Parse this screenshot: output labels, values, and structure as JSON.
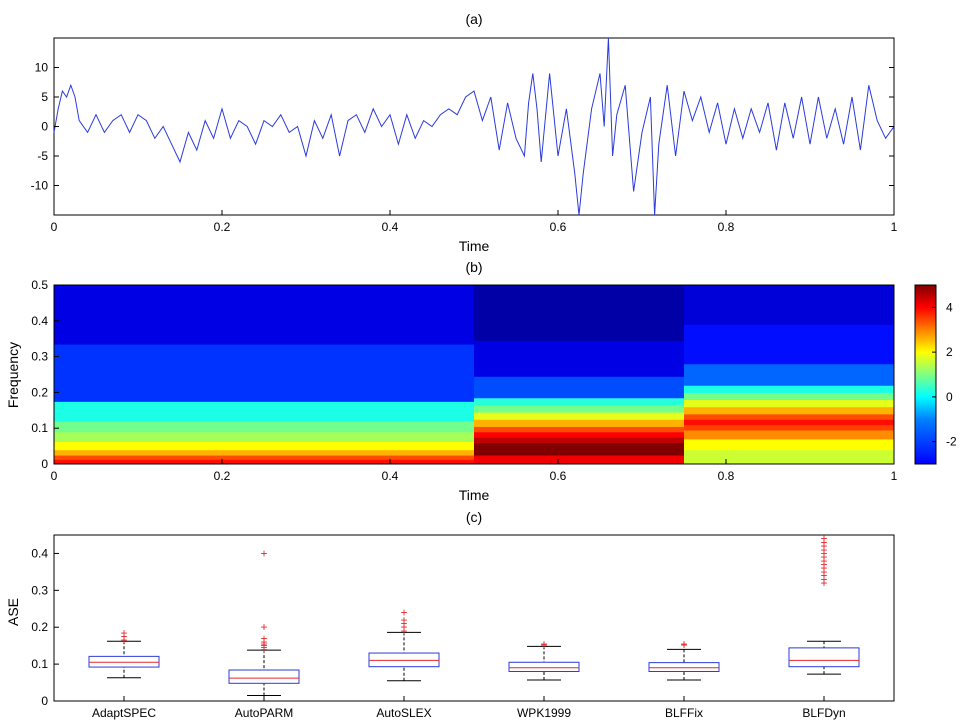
{
  "chart_data": [
    {
      "type": "line",
      "title": "(a)",
      "xlabel": "Time",
      "ylabel": "",
      "xlim": [
        0,
        1
      ],
      "ylim": [
        -15,
        15
      ],
      "xticks": [
        "0",
        "0.2",
        "0.4",
        "0.6",
        "0.8",
        "1"
      ],
      "yticks": [
        "10",
        "5",
        "0",
        "-5",
        "-10"
      ],
      "series": [
        {
          "name": "signal",
          "color": "#2b3bdb",
          "x": [
            0,
            0.005,
            0.01,
            0.015,
            0.02,
            0.025,
            0.03,
            0.04,
            0.05,
            0.06,
            0.07,
            0.08,
            0.09,
            0.1,
            0.11,
            0.12,
            0.13,
            0.14,
            0.15,
            0.16,
            0.17,
            0.18,
            0.19,
            0.2,
            0.21,
            0.22,
            0.23,
            0.24,
            0.25,
            0.26,
            0.27,
            0.28,
            0.29,
            0.3,
            0.31,
            0.32,
            0.33,
            0.34,
            0.35,
            0.36,
            0.37,
            0.38,
            0.39,
            0.4,
            0.41,
            0.42,
            0.43,
            0.44,
            0.45,
            0.46,
            0.47,
            0.48,
            0.49,
            0.5,
            0.51,
            0.52,
            0.53,
            0.54,
            0.55,
            0.56,
            0.565,
            0.57,
            0.575,
            0.58,
            0.59,
            0.6,
            0.61,
            0.62,
            0.625,
            0.63,
            0.64,
            0.65,
            0.655,
            0.66,
            0.665,
            0.67,
            0.68,
            0.69,
            0.7,
            0.71,
            0.715,
            0.72,
            0.73,
            0.74,
            0.75,
            0.76,
            0.77,
            0.78,
            0.79,
            0.8,
            0.81,
            0.82,
            0.83,
            0.84,
            0.85,
            0.86,
            0.87,
            0.88,
            0.89,
            0.9,
            0.91,
            0.92,
            0.93,
            0.94,
            0.95,
            0.96,
            0.97,
            0.98,
            0.99,
            1.0
          ],
          "y": [
            -1,
            3,
            6,
            5,
            7,
            5,
            1,
            -1,
            2,
            -1,
            1,
            2,
            -1,
            2,
            1,
            -2,
            0,
            -3,
            -6,
            -1,
            -4,
            1,
            -2,
            3,
            -2,
            1,
            0,
            -3,
            1,
            0,
            2,
            -1,
            0,
            -5,
            1,
            -2,
            2,
            -5,
            1,
            2,
            -1,
            3,
            0,
            2,
            -3,
            2,
            -2,
            1,
            0,
            2,
            3,
            2,
            5,
            6,
            1,
            5,
            -4,
            4,
            -2,
            -5,
            4,
            9,
            3,
            -6,
            9,
            -5,
            3,
            -8,
            -15,
            -8,
            3,
            9,
            0,
            15,
            -5,
            2,
            7,
            -11,
            -1,
            5,
            -15,
            -3,
            7,
            -5,
            6,
            1,
            5,
            -1,
            4,
            -3,
            3,
            -2,
            3,
            -1,
            4,
            -4,
            4,
            -2,
            5,
            -3,
            5,
            -2,
            3,
            -3,
            5,
            -4,
            7,
            1,
            -2,
            0
          ]
        }
      ]
    },
    {
      "type": "heatmap",
      "title": "(b)",
      "xlabel": "Time",
      "ylabel": "Frequency",
      "xlim": [
        0,
        1
      ],
      "ylim": [
        0,
        0.5
      ],
      "xticks": [
        "0",
        "0.2",
        "0.4",
        "0.6",
        "0.8",
        "1"
      ],
      "yticks": [
        "0.5",
        "0.4",
        "0.3",
        "0.2",
        "0.1",
        "0"
      ],
      "colorbar": {
        "min": -3,
        "max": 5,
        "ticks": [
          "4",
          "2",
          "0",
          "-2"
        ]
      },
      "segments": [
        {
          "t0": 0,
          "t1": 0.5,
          "bands": [
            {
              "f0": 0.0,
              "f1": 0.013,
              "v": 3.9
            },
            {
              "f0": 0.013,
              "f1": 0.025,
              "v": 3.4
            },
            {
              "f0": 0.025,
              "f1": 0.04,
              "v": 2.6
            },
            {
              "f0": 0.04,
              "f1": 0.063,
              "v": 2.0
            },
            {
              "f0": 0.063,
              "f1": 0.09,
              "v": 1.3
            },
            {
              "f0": 0.09,
              "f1": 0.12,
              "v": 0.9
            },
            {
              "f0": 0.12,
              "f1": 0.175,
              "v": 0.2
            },
            {
              "f0": 0.175,
              "f1": 0.335,
              "v": -1.6
            },
            {
              "f0": 0.335,
              "f1": 0.5,
              "v": -2.2
            }
          ]
        },
        {
          "t0": 0.5,
          "t1": 0.75,
          "bands": [
            {
              "f0": 0.0,
              "f1": 0.025,
              "v": 4.1
            },
            {
              "f0": 0.025,
              "f1": 0.06,
              "v": 5.0
            },
            {
              "f0": 0.06,
              "f1": 0.075,
              "v": 4.5
            },
            {
              "f0": 0.075,
              "f1": 0.09,
              "v": 4.0
            },
            {
              "f0": 0.09,
              "f1": 0.105,
              "v": 3.4
            },
            {
              "f0": 0.105,
              "f1": 0.125,
              "v": 2.6
            },
            {
              "f0": 0.125,
              "f1": 0.145,
              "v": 1.8
            },
            {
              "f0": 0.145,
              "f1": 0.165,
              "v": 0.9
            },
            {
              "f0": 0.165,
              "f1": 0.185,
              "v": 0.3
            },
            {
              "f0": 0.185,
              "f1": 0.245,
              "v": -1.4
            },
            {
              "f0": 0.245,
              "f1": 0.345,
              "v": -2.2
            },
            {
              "f0": 0.345,
              "f1": 0.5,
              "v": -2.7
            }
          ]
        },
        {
          "t0": 0.75,
          "t1": 1.0,
          "bands": [
            {
              "f0": 0.0,
              "f1": 0.04,
              "v": 1.6
            },
            {
              "f0": 0.04,
              "f1": 0.07,
              "v": 2.0
            },
            {
              "f0": 0.07,
              "f1": 0.095,
              "v": 2.9
            },
            {
              "f0": 0.095,
              "f1": 0.11,
              "v": 3.5
            },
            {
              "f0": 0.11,
              "f1": 0.125,
              "v": 3.9
            },
            {
              "f0": 0.125,
              "f1": 0.14,
              "v": 3.4
            },
            {
              "f0": 0.14,
              "f1": 0.16,
              "v": 2.6
            },
            {
              "f0": 0.16,
              "f1": 0.18,
              "v": 1.8
            },
            {
              "f0": 0.18,
              "f1": 0.2,
              "v": 0.9
            },
            {
              "f0": 0.2,
              "f1": 0.22,
              "v": 0.2
            },
            {
              "f0": 0.22,
              "f1": 0.28,
              "v": -1.2
            },
            {
              "f0": 0.28,
              "f1": 0.39,
              "v": -1.9
            },
            {
              "f0": 0.39,
              "f1": 0.5,
              "v": -2.3
            }
          ]
        }
      ]
    },
    {
      "type": "box",
      "title": "(c)",
      "xlabel": "",
      "ylabel": "ASE",
      "ylim": [
        0,
        0.45
      ],
      "yticks": [
        "0.4",
        "0.3",
        "0.2",
        "0.1",
        "0"
      ],
      "categories": [
        "AdaptSPEC",
        "AutoPARM",
        "AutoSLEX",
        "WPK1999",
        "BLFFix",
        "BLFDyn"
      ],
      "boxes": [
        {
          "whislo": 0.063,
          "q1": 0.092,
          "med": 0.105,
          "q3": 0.121,
          "whishi": 0.162,
          "fliers": [
            0.165,
            0.175,
            0.185
          ]
        },
        {
          "whislo": 0.015,
          "q1": 0.048,
          "med": 0.062,
          "q3": 0.084,
          "whishi": 0.138,
          "fliers": [
            0.14,
            0.145,
            0.15,
            0.155,
            0.16,
            0.17,
            0.2,
            0.4
          ]
        },
        {
          "whislo": 0.055,
          "q1": 0.093,
          "med": 0.11,
          "q3": 0.13,
          "whishi": 0.186,
          "fliers": [
            0.19,
            0.2,
            0.21,
            0.22,
            0.24
          ]
        },
        {
          "whislo": 0.057,
          "q1": 0.08,
          "med": 0.09,
          "q3": 0.105,
          "whishi": 0.148,
          "fliers": [
            0.152,
            0.155
          ]
        },
        {
          "whislo": 0.057,
          "q1": 0.08,
          "med": 0.09,
          "q3": 0.104,
          "whishi": 0.14,
          "fliers": [
            0.152,
            0.155
          ]
        },
        {
          "whislo": 0.073,
          "q1": 0.093,
          "med": 0.11,
          "q3": 0.144,
          "whishi": 0.162,
          "fliers": [
            0.32,
            0.33,
            0.34,
            0.35,
            0.36,
            0.37,
            0.38,
            0.39,
            0.4,
            0.41,
            0.42,
            0.43,
            0.44
          ]
        }
      ],
      "box_color": "#2b3bdb",
      "median_color": "#e8262b",
      "whisker_color": "#000000",
      "flier_color": "#e8262b"
    }
  ]
}
